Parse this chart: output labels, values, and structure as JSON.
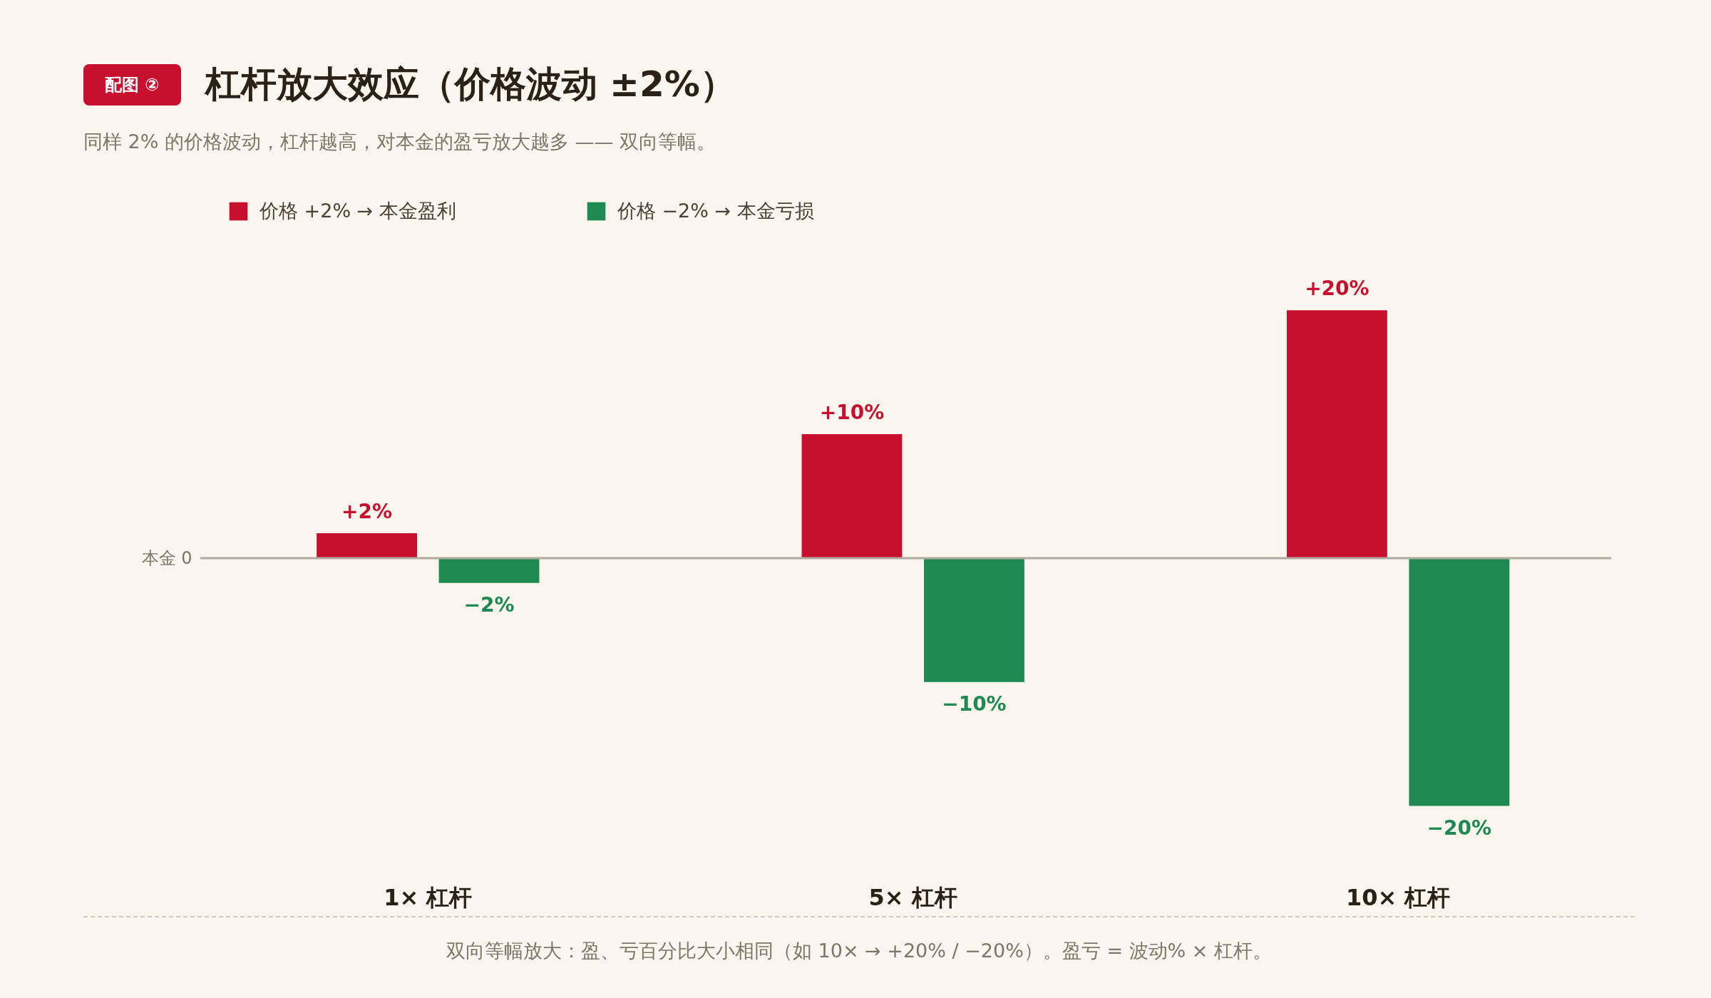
{
  "chart_data": {
    "type": "bar",
    "title": "杠杆放大效应（价格波动 ±2%）",
    "subtitle": "同样 2% 的价格波动，杠杆越高，对本金的盈亏放大越多 —— 双向等幅。",
    "annotations": [
      "配图 ②",
      "本金 0",
      "双向等幅放大：盈、亏百分比大小相同（如 10× → +20% / −20%）。盈亏 = 波动% × 杠杆。"
    ],
    "categories": [
      "1× 杠杆",
      "5× 杠杆",
      "10× 杠杆"
    ],
    "series": [
      {
        "name": "价格 +2% → 本金盈利",
        "color": "#c8102e",
        "values": [
          2,
          10,
          20
        ],
        "value_labels": [
          "+2%",
          "+10%",
          "+20%"
        ]
      },
      {
        "name": "价格 −2% → 本金亏损",
        "color": "#1e8a52",
        "values": [
          -2,
          -10,
          -20
        ],
        "value_labels": [
          "−2%",
          "−10%",
          "−20%"
        ]
      }
    ],
    "legend": "top left"
  }
}
